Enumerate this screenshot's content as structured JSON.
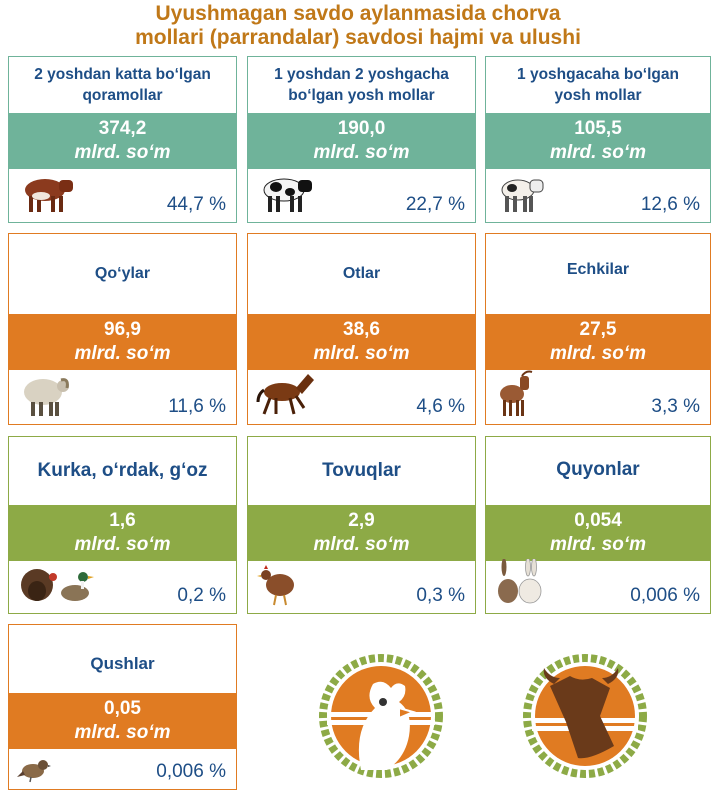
{
  "title_line1": "Uyushmagan savdo aylanmasida chorva",
  "title_line2": "mollari (parrandalar) savdosi hajmi va ulushi",
  "unit": "mlrd. so‘m",
  "cards": [
    {
      "label_line1": "2 yoshdan katta bo‘lgan",
      "label_line2": "qoramollar",
      "value": "374,2",
      "unit": "mlrd. so‘m",
      "share": "44,7 %",
      "icon": "bull-icon",
      "color": "#6FB39A"
    },
    {
      "label_line1": "1 yoshdan 2 yoshgacha",
      "label_line2": "bo‘lgan yosh mollar",
      "value": "190,0",
      "unit": "mlrd. so‘m",
      "share": "22,7 %",
      "icon": "cow-icon",
      "color": "#6FB39A"
    },
    {
      "label_line1": "1 yoshgacaha bo‘lgan",
      "label_line2": "yosh mollar",
      "value": "105,5",
      "unit": "mlrd. so‘m",
      "share": "12,6 %",
      "icon": "calf-icon",
      "color": "#6FB39A"
    },
    {
      "label_line1": "Qo‘ylar",
      "label_line2": "",
      "value": "96,9",
      "unit": "mlrd. so‘m",
      "share": "11,6 %",
      "icon": "sheep-icon",
      "color": "#E07B22"
    },
    {
      "label_line1": "Otlar",
      "label_line2": "",
      "value": "38,6",
      "unit": "mlrd. so‘m",
      "share": "4,6 %",
      "icon": "horse-icon",
      "color": "#E07B22"
    },
    {
      "label_line1": "Echkilar",
      "label_line2": "",
      "value": "27,5",
      "unit": "mlrd. so‘m",
      "share": "3,3 %",
      "icon": "goat-icon",
      "color": "#E07B22"
    },
    {
      "label_line1": "Kurka, o‘rdak, g‘oz",
      "label_line2": "",
      "value": "1,6",
      "unit": "mlrd. so‘m",
      "share": "0,2 %",
      "icon": "turkey-duck-icon",
      "color": "#8DAA46"
    },
    {
      "label_line1": "Tovuqlar",
      "label_line2": "",
      "value": "2,9",
      "unit": "mlrd. so‘m",
      "share": "0,3 %",
      "icon": "hen-icon",
      "color": "#8DAA46"
    },
    {
      "label_line1": "Quyonlar",
      "label_line2": "",
      "value": "0,054",
      "unit": "mlrd. so‘m",
      "share": "0,006 %",
      "icon": "rabbit-icon",
      "color": "#8DAA46"
    },
    {
      "label_line1": "Qushlar",
      "label_line2": "",
      "value": "0,05",
      "unit": "mlrd. so‘m",
      "share": "0,006 %",
      "icon": "sparrow-icon",
      "color": "#E07B22"
    }
  ],
  "logos": [
    {
      "icon": "rooster-emblem-icon",
      "color": "#E07B22",
      "wreath_color": "#8DAA46"
    },
    {
      "icon": "bull-emblem-icon",
      "color": "#E07B22",
      "wreath_color": "#8DAA46"
    }
  ]
}
